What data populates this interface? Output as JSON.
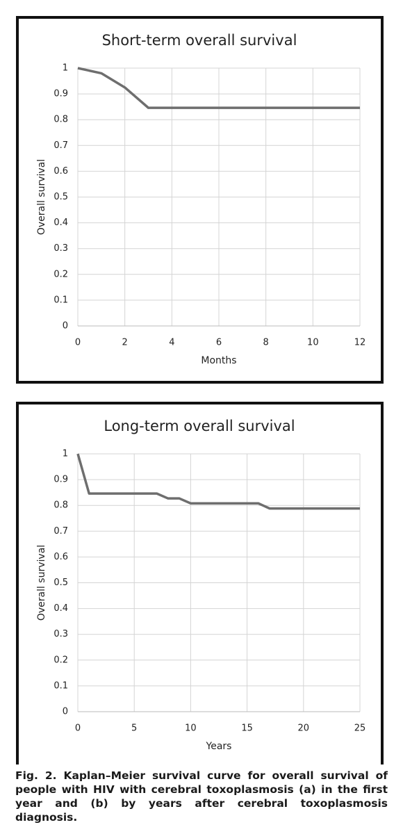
{
  "chart_data": [
    {
      "type": "line",
      "title": "Short-term overall survival",
      "x_label": "Months",
      "y_label": "Overall survival",
      "x": [
        0,
        1,
        2,
        3,
        4,
        5,
        6,
        7,
        8,
        9,
        10,
        11,
        12
      ],
      "values": [
        1,
        0.98,
        0.925,
        0.846,
        0.846,
        0.846,
        0.846,
        0.846,
        0.846,
        0.846,
        0.846,
        0.846,
        0.846
      ],
      "color": "#6e6e6e",
      "xlim": [
        0,
        12
      ],
      "xticks": [
        0,
        2,
        4,
        6,
        8,
        10,
        12
      ],
      "ylim": [
        0,
        1
      ],
      "yticks": [
        0,
        0.1,
        0.2,
        0.3,
        0.4,
        0.5,
        0.6,
        0.7,
        0.8,
        0.9,
        1
      ],
      "grid": true
    },
    {
      "type": "line",
      "title": "Long-term overall survival",
      "x_label": "Years",
      "y_label": "Overall survival",
      "x": [
        0,
        1,
        2,
        3,
        4,
        5,
        6,
        7,
        8,
        9,
        10,
        11,
        12,
        13,
        14,
        15,
        16,
        17,
        18,
        19,
        20,
        21,
        22,
        23,
        24,
        25
      ],
      "values": [
        1,
        0.846,
        0.846,
        0.846,
        0.846,
        0.846,
        0.846,
        0.846,
        0.827,
        0.827,
        0.808,
        0.808,
        0.808,
        0.808,
        0.808,
        0.808,
        0.808,
        0.788,
        0.788,
        0.788,
        0.788,
        0.788,
        0.788,
        0.788,
        0.788,
        0.788
      ],
      "color": "#6e6e6e",
      "xlim": [
        0,
        25
      ],
      "xticks": [
        0,
        5,
        10,
        15,
        20,
        25
      ],
      "ylim": [
        0,
        1
      ],
      "yticks": [
        0,
        0.1,
        0.2,
        0.3,
        0.4,
        0.5,
        0.6,
        0.7,
        0.8,
        0.9,
        1
      ],
      "grid": true
    }
  ],
  "caption": "Fig. 2. Kaplan–Meier survival curve for overall survival of people with HIV with cerebral toxoplasmosis (a) in the first year and (b) by years after cerebral toxoplasmosis diagnosis."
}
